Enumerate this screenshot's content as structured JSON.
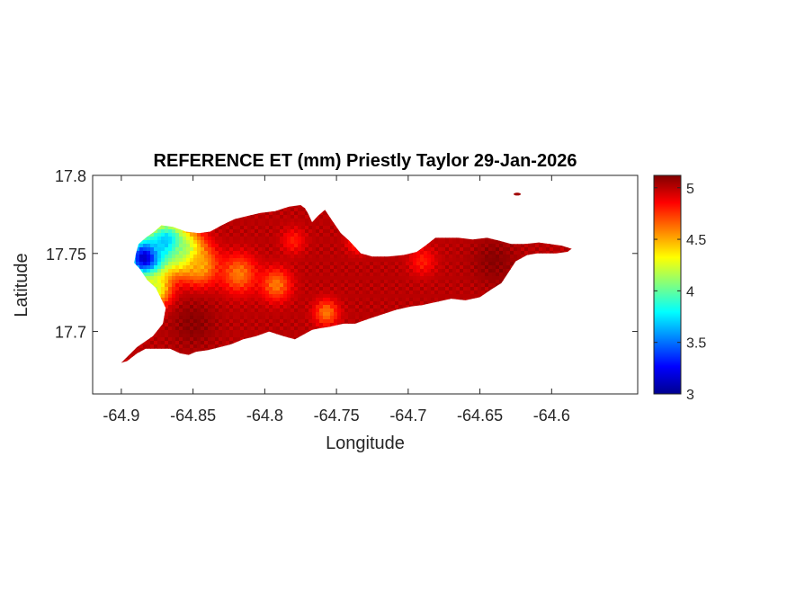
{
  "chart_data": {
    "type": "heatmap",
    "title": "REFERENCE ET (mm) Priestly Taylor 29-Jan-2026",
    "xlabel": "Longitude",
    "ylabel": "Latitude",
    "xlim": [
      -64.92,
      -64.54
    ],
    "ylim": [
      17.66,
      17.8
    ],
    "x_ticks": [
      -64.9,
      -64.85,
      -64.8,
      -64.75,
      -64.7,
      -64.65,
      -64.6
    ],
    "x_tick_labels": [
      "-64.9",
      "-64.85",
      "-64.8",
      "-64.75",
      "-64.7",
      "-64.65",
      "-64.6"
    ],
    "y_ticks": [
      17.7,
      17.75,
      17.8
    ],
    "y_tick_labels": [
      "17.7",
      "17.75",
      "17.8"
    ],
    "colorbar": {
      "colormap": "jet",
      "clim": [
        3,
        5.12
      ],
      "ticks": [
        3,
        3.5,
        4,
        4.5,
        5
      ],
      "tick_labels": [
        "3",
        "3.5",
        "4",
        "4.5",
        "5"
      ]
    },
    "grid": false,
    "field": {
      "base_value": 5.0,
      "features": [
        {
          "lon": -64.883,
          "lat": 17.747,
          "value": 3.0,
          "radius": 0.014
        },
        {
          "lon": -64.868,
          "lat": 17.757,
          "value": 3.6,
          "radius": 0.014
        },
        {
          "lon": -64.855,
          "lat": 17.75,
          "value": 4.0,
          "radius": 0.012
        },
        {
          "lon": -64.877,
          "lat": 17.727,
          "value": 4.2,
          "radius": 0.011
        },
        {
          "lon": -64.845,
          "lat": 17.742,
          "value": 4.5,
          "radius": 0.012
        },
        {
          "lon": -64.818,
          "lat": 17.737,
          "value": 4.6,
          "radius": 0.012
        },
        {
          "lon": -64.792,
          "lat": 17.73,
          "value": 4.6,
          "radius": 0.01
        },
        {
          "lon": -64.757,
          "lat": 17.712,
          "value": 4.6,
          "radius": 0.008
        },
        {
          "lon": -64.735,
          "lat": 17.758,
          "value": 4.7,
          "radius": 0.007
        },
        {
          "lon": -64.78,
          "lat": 17.758,
          "value": 4.8,
          "radius": 0.008
        },
        {
          "lon": -64.69,
          "lat": 17.745,
          "value": 4.8,
          "radius": 0.009
        },
        {
          "lon": -64.85,
          "lat": 17.705,
          "value": 5.1,
          "radius": 0.015
        },
        {
          "lon": -64.64,
          "lat": 17.745,
          "value": 5.1,
          "radius": 0.015
        }
      ]
    },
    "island_outline": [
      [
        -64.9,
        17.68
      ],
      [
        -64.889,
        17.69
      ],
      [
        -64.878,
        17.697
      ],
      [
        -64.871,
        17.705
      ],
      [
        -64.869,
        17.715
      ],
      [
        -64.876,
        17.728
      ],
      [
        -64.882,
        17.733
      ],
      [
        -64.887,
        17.74
      ],
      [
        -64.891,
        17.744
      ],
      [
        -64.89,
        17.749
      ],
      [
        -64.888,
        17.756
      ],
      [
        -64.883,
        17.76
      ],
      [
        -64.877,
        17.764
      ],
      [
        -64.872,
        17.768
      ],
      [
        -64.864,
        17.767
      ],
      [
        -64.855,
        17.764
      ],
      [
        -64.846,
        17.763
      ],
      [
        -64.838,
        17.764
      ],
      [
        -64.83,
        17.768
      ],
      [
        -64.821,
        17.772
      ],
      [
        -64.812,
        17.774
      ],
      [
        -64.803,
        17.776
      ],
      [
        -64.793,
        17.777
      ],
      [
        -64.783,
        17.78
      ],
      [
        -64.775,
        17.781
      ],
      [
        -64.772,
        17.779
      ],
      [
        -64.77,
        17.776
      ],
      [
        -64.767,
        17.77
      ],
      [
        -64.763,
        17.774
      ],
      [
        -64.758,
        17.778
      ],
      [
        -64.753,
        17.771
      ],
      [
        -64.747,
        17.763
      ],
      [
        -64.741,
        17.758
      ],
      [
        -64.733,
        17.75
      ],
      [
        -64.725,
        17.748
      ],
      [
        -64.714,
        17.748
      ],
      [
        -64.703,
        17.749
      ],
      [
        -64.694,
        17.751
      ],
      [
        -64.688,
        17.755
      ],
      [
        -64.681,
        17.76
      ],
      [
        -64.675,
        17.76
      ],
      [
        -64.665,
        17.76
      ],
      [
        -64.655,
        17.759
      ],
      [
        -64.645,
        17.76
      ],
      [
        -64.636,
        17.758
      ],
      [
        -64.628,
        17.756
      ],
      [
        -64.619,
        17.756
      ],
      [
        -64.609,
        17.757
      ],
      [
        -64.601,
        17.756
      ],
      [
        -64.593,
        17.755
      ],
      [
        -64.586,
        17.753
      ],
      [
        -64.589,
        17.751
      ],
      [
        -64.597,
        17.75
      ],
      [
        -64.61,
        17.75
      ],
      [
        -64.617,
        17.749
      ],
      [
        -64.625,
        17.745
      ],
      [
        -64.63,
        17.738
      ],
      [
        -64.635,
        17.731
      ],
      [
        -64.642,
        17.727
      ],
      [
        -64.65,
        17.722
      ],
      [
        -64.66,
        17.72
      ],
      [
        -64.67,
        17.721
      ],
      [
        -64.68,
        17.719
      ],
      [
        -64.69,
        17.717
      ],
      [
        -64.698,
        17.716
      ],
      [
        -64.708,
        17.714
      ],
      [
        -64.718,
        17.711
      ],
      [
        -64.728,
        17.708
      ],
      [
        -64.737,
        17.705
      ],
      [
        -64.745,
        17.705
      ],
      [
        -64.755,
        17.703
      ],
      [
        -64.762,
        17.702
      ],
      [
        -64.767,
        17.701
      ],
      [
        -64.773,
        17.698
      ],
      [
        -64.779,
        17.695
      ],
      [
        -64.787,
        17.697
      ],
      [
        -64.797,
        17.7
      ],
      [
        -64.806,
        17.697
      ],
      [
        -64.815,
        17.695
      ],
      [
        -64.823,
        17.692
      ],
      [
        -64.831,
        17.69
      ],
      [
        -64.84,
        17.688
      ],
      [
        -64.848,
        17.687
      ],
      [
        -64.853,
        17.685
      ],
      [
        -64.859,
        17.686
      ],
      [
        -64.866,
        17.689
      ],
      [
        -64.875,
        17.689
      ],
      [
        -64.883,
        17.689
      ],
      [
        -64.889,
        17.686
      ],
      [
        -64.896,
        17.681
      ]
    ],
    "islet": {
      "lon": -64.624,
      "lat": 17.788
    }
  }
}
